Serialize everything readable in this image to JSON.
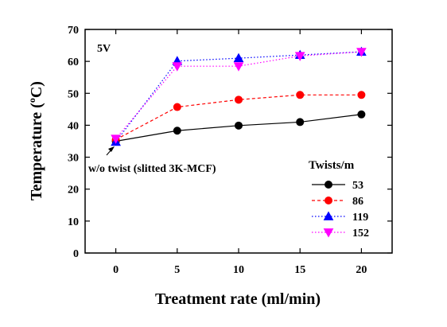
{
  "chart_data": {
    "type": "line",
    "xlabel": "Treatment rate (ml/min)",
    "ylabel_main": "Temperature (",
    "ylabel_sup": "o",
    "ylabel_tail": "C)",
    "xlim": [
      -2.5,
      22.5
    ],
    "ylim": [
      0,
      70
    ],
    "x_ticks": [
      0,
      5,
      10,
      15,
      20
    ],
    "y_ticks": [
      0,
      10,
      20,
      30,
      40,
      50,
      60,
      70
    ],
    "grid": false,
    "legend_position": "bottom-right",
    "legend_title": "Twists/m",
    "voltage_label": "5V",
    "annotation": "w/o twist (slitted 3K-MCF)",
    "annotation_point": [
      0,
      34.5
    ],
    "x": [
      0,
      5,
      10,
      15,
      20
    ],
    "series": [
      {
        "name": "53",
        "values": [
          35.0,
          38.3,
          39.9,
          41.0,
          43.4
        ],
        "color": "#000000",
        "marker": "circle",
        "line": "solid"
      },
      {
        "name": "86",
        "values": [
          35.5,
          45.7,
          48.0,
          49.5,
          49.5
        ],
        "color": "#ff0000",
        "marker": "circle",
        "line": "dashed"
      },
      {
        "name": "119",
        "values": [
          34.8,
          60.1,
          61.0,
          62.0,
          63.0
        ],
        "color": "#0000ff",
        "marker": "triangle-up",
        "line": "dotted"
      },
      {
        "name": "152",
        "values": [
          35.8,
          58.5,
          58.5,
          61.7,
          63.0
        ],
        "color": "#ff00ff",
        "marker": "triangle-down",
        "line": "dotted"
      }
    ]
  }
}
